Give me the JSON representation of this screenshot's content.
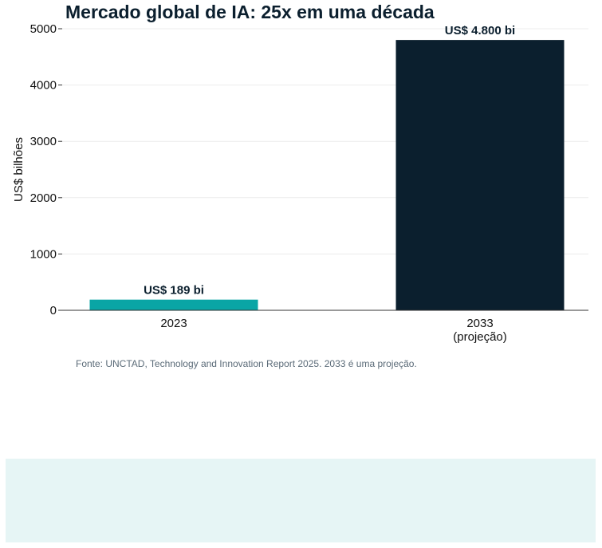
{
  "chart_data": {
    "type": "bar",
    "title": "Mercado global de IA: 25x em uma década",
    "xlabel": "",
    "ylabel": "US$ bilhões",
    "categories": [
      "2023",
      "2033\n(projeção)"
    ],
    "values": [
      189,
      4800
    ],
    "data_labels": [
      "US$ 189 bi",
      "US$ 4.800 bi"
    ],
    "colors": [
      "#0aa5a5",
      "#0b1f2e"
    ],
    "ylim": [
      0,
      5000
    ],
    "yticks": [
      0,
      1000,
      2000,
      3000,
      4000,
      5000
    ],
    "grid": "horizontal",
    "legend": "none"
  },
  "source_note": "Fonte: UNCTAD, Technology and Innovation Report 2025. 2033 é uma projeção."
}
